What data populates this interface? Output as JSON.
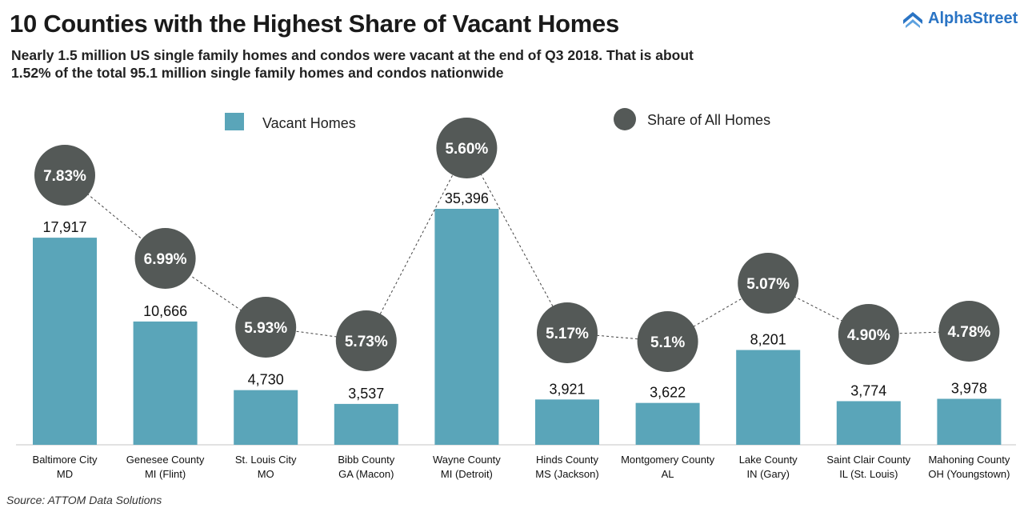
{
  "chart_data": {
    "type": "bar",
    "title": "10 Counties with the Highest Share of Vacant Homes",
    "subtitle": "Nearly 1.5 million US single family homes and condos were vacant at the end of Q3 2018. That is about 1.52% of the total 95.1 million single family homes and condos nationwide",
    "categories": [
      [
        "Baltimore City",
        "MD"
      ],
      [
        "Genesee County",
        "MI (Flint)"
      ],
      [
        "St. Louis City",
        "MO"
      ],
      [
        "Bibb County",
        "GA (Macon)"
      ],
      [
        "Wayne County",
        "MI (Detroit)"
      ],
      [
        "Hinds County",
        "MS (Jackson)"
      ],
      [
        "Montgomery County",
        "AL"
      ],
      [
        "Lake County",
        "IN (Gary)"
      ],
      [
        "Saint Clair County",
        "IL (St. Louis)"
      ],
      [
        "Mahoning County",
        "OH (Youngstown)"
      ]
    ],
    "series": [
      {
        "name": "Vacant Homes",
        "type": "bar",
        "color": "#5aa5b9",
        "values": [
          17917,
          10666,
          4730,
          3537,
          35396,
          3921,
          3622,
          8201,
          3774,
          3978
        ],
        "labels": [
          "17,917",
          "10,666",
          "4,730",
          "3,537",
          "35,396",
          "3,921",
          "3,622",
          "8,201",
          "3,774",
          "3,978"
        ]
      },
      {
        "name": "Share of All Homes",
        "type": "bubble-line",
        "color": "#545957",
        "values": [
          7.83,
          6.99,
          5.93,
          5.73,
          5.6,
          5.17,
          5.1,
          5.07,
          4.9,
          4.78
        ],
        "labels": [
          "7.83%",
          "6.99%",
          "5.93%",
          "5.73%",
          "5.60%",
          "5.17%",
          "5.1%",
          "5.07%",
          "4.90%",
          "4.78%"
        ]
      }
    ],
    "legend": "top",
    "grid": false,
    "source": "Source: ATTOM Data Solutions"
  },
  "brand": {
    "name": "AlphaStreet",
    "color": "#2a74c4"
  }
}
